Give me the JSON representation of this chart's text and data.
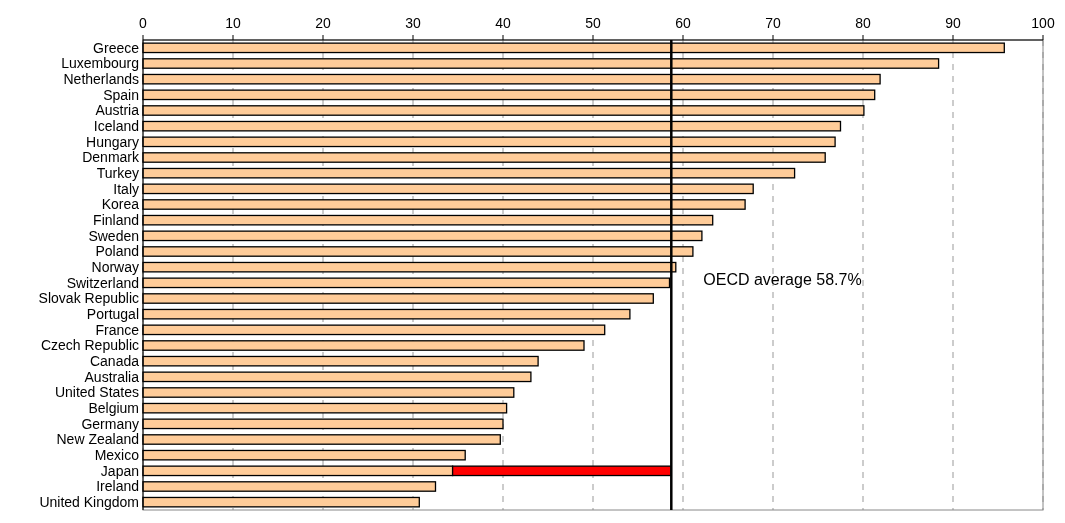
{
  "chart_data": {
    "type": "bar",
    "orientation": "horizontal",
    "stacked": true,
    "categories": [
      "Greece",
      "Luxembourg",
      "Netherlands",
      "Spain",
      "Austria",
      "Iceland",
      "Hungary",
      "Denmark",
      "Turkey",
      "Italy",
      "Korea",
      "Finland",
      "Sweden",
      "Poland",
      "Norway",
      "Switzerland",
      "Slovak Republic",
      "Portugal",
      "France",
      "Czech Republic",
      "Canada",
      "Australia",
      "United States",
      "Belgium",
      "Germany",
      "New Zealand",
      "Mexico",
      "Japan",
      "Ireland",
      "United Kingdom"
    ],
    "series": [
      {
        "color": "#ffcc99",
        "values": [
          95.7,
          88.4,
          81.9,
          81.3,
          80.1,
          77.5,
          76.9,
          75.8,
          72.4,
          67.8,
          66.9,
          63.3,
          62.1,
          61.1,
          59.2,
          58.5,
          56.7,
          54.1,
          51.3,
          49.0,
          43.9,
          43.1,
          41.2,
          40.4,
          40.0,
          39.7,
          35.8,
          34.4,
          32.5,
          30.7
        ]
      },
      {
        "color": "#ff0000",
        "values": [
          null,
          null,
          null,
          null,
          null,
          null,
          null,
          null,
          null,
          null,
          null,
          null,
          null,
          null,
          null,
          null,
          null,
          null,
          null,
          null,
          null,
          null,
          null,
          null,
          null,
          null,
          null,
          24.3,
          null,
          null
        ]
      }
    ],
    "xlim": [
      0,
      100
    ],
    "xticks": [
      0,
      10,
      20,
      30,
      40,
      50,
      60,
      70,
      80,
      90,
      100
    ],
    "grid": "x",
    "line_style": "dashed",
    "ref_lines": [
      {
        "axis": "x",
        "value": 58.7,
        "label": "OECD average 58.7%",
        "color": "#000000"
      }
    ]
  }
}
